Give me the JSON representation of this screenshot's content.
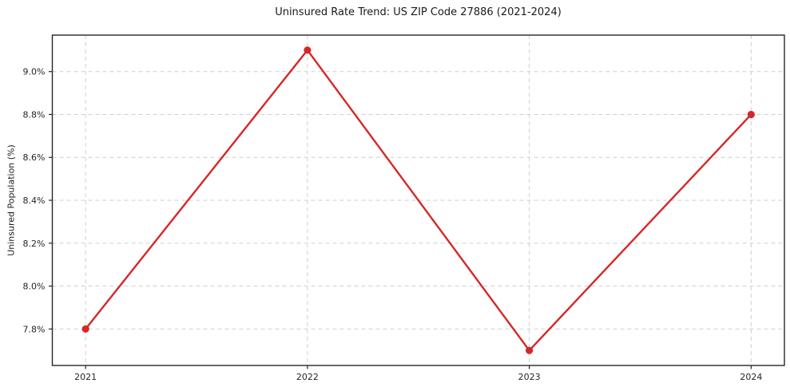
{
  "chart_data": {
    "type": "line",
    "title": "Uninsured Rate Trend: US ZIP Code 27886 (2021-2024)",
    "xlabel": "",
    "ylabel": "Uninsured Population (%)",
    "x": [
      2021,
      2022,
      2023,
      2024
    ],
    "x_tick_labels": [
      "2021",
      "2022",
      "2023",
      "2024"
    ],
    "series": [
      {
        "name": "Uninsured Population (%)",
        "values": [
          7.8,
          9.1,
          7.7,
          8.8
        ]
      }
    ],
    "y_ticks": [
      7.8,
      8.0,
      8.2,
      8.4,
      8.6,
      8.8,
      9.0
    ],
    "y_tick_labels": [
      "7.8%",
      "8.0%",
      "8.2%",
      "8.4%",
      "8.6%",
      "8.8%",
      "9.0%"
    ],
    "xlim": [
      2020.85,
      2024.15
    ],
    "ylim": [
      7.63,
      9.17
    ],
    "grid": true,
    "grid_style": "dashed",
    "legend": "none",
    "colors": {
      "line": "#d62728",
      "marker": "#d62728",
      "grid": "#cfcfcf",
      "axis_frame": "#262626",
      "tick_label": "#262626",
      "background": "#ffffff"
    }
  }
}
